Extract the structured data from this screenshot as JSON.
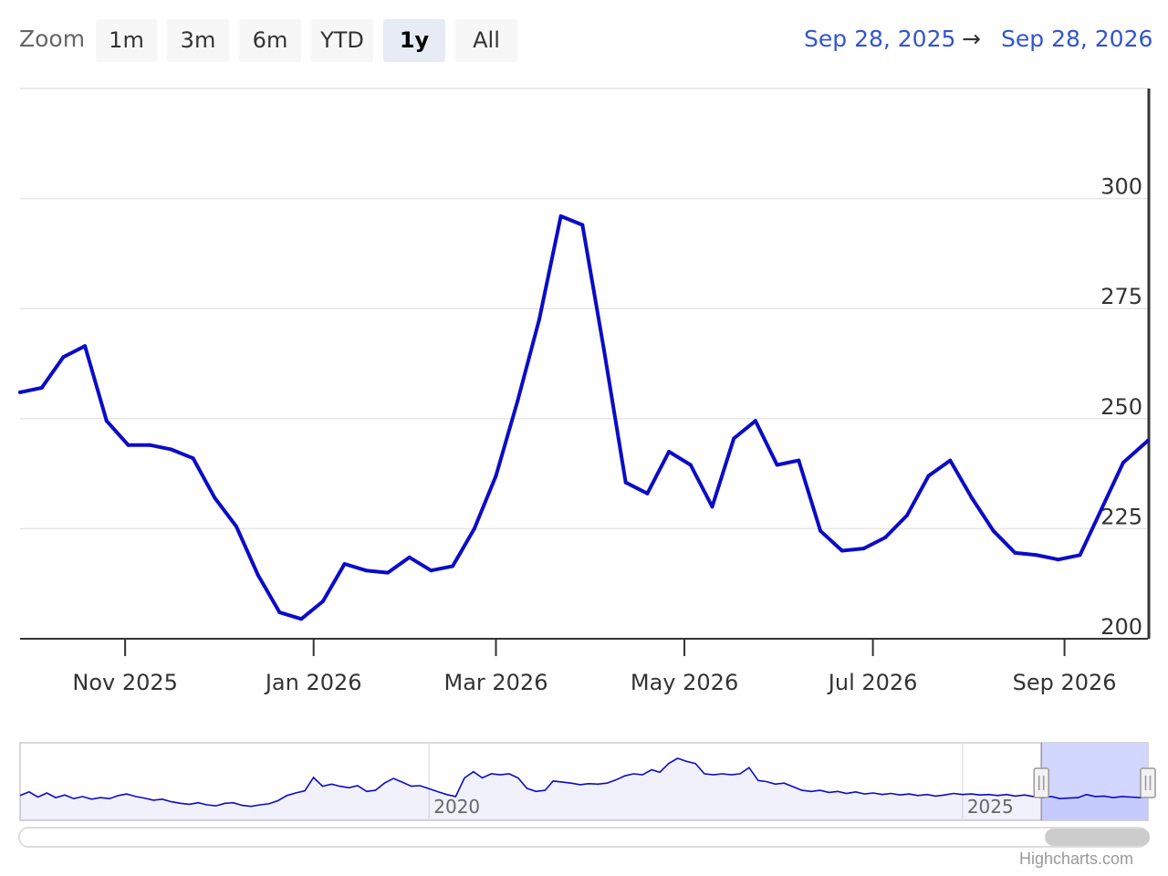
{
  "range_selector": {
    "zoom_label": "Zoom",
    "buttons": [
      "1m",
      "3m",
      "6m",
      "YTD",
      "1y",
      "All"
    ],
    "selected": "1y",
    "from": "Sep 28, 2025",
    "arrow": "→",
    "to": "Sep 28, 2026"
  },
  "credits": "Highcharts.com",
  "colors": {
    "series": "#0b0bc8",
    "navigator_mask": "#ccd3ff",
    "selected_button": "#e6ebf5",
    "range_text": "#3355cc"
  },
  "chart_data": {
    "type": "line",
    "x_range": [
      "2025-09-28",
      "2026-09-28"
    ],
    "ylim": [
      200,
      325
    ],
    "y_ticks": [
      200,
      225,
      250,
      275,
      300
    ],
    "x_ticks": [
      {
        "date": "2025-11-01",
        "label": "Nov 2025"
      },
      {
        "date": "2026-01-01",
        "label": "Jan 2026"
      },
      {
        "date": "2026-03-01",
        "label": "Mar 2026"
      },
      {
        "date": "2026-05-01",
        "label": "May 2026"
      },
      {
        "date": "2026-07-01",
        "label": "Jul 2026"
      },
      {
        "date": "2026-09-01",
        "label": "Sep 2026"
      }
    ],
    "grid": true,
    "series": [
      {
        "points": [
          [
            "2025-09-28",
            256
          ],
          [
            "2025-10-05",
            257
          ],
          [
            "2025-10-12",
            264
          ],
          [
            "2025-10-19",
            266.5
          ],
          [
            "2025-10-26",
            249.5
          ],
          [
            "2025-11-02",
            244
          ],
          [
            "2025-11-09",
            244
          ],
          [
            "2025-11-16",
            243
          ],
          [
            "2025-11-23",
            241
          ],
          [
            "2025-11-30",
            232
          ],
          [
            "2025-12-07",
            225.5
          ],
          [
            "2025-12-14",
            214.5
          ],
          [
            "2025-12-21",
            206
          ],
          [
            "2025-12-28",
            204.5
          ],
          [
            "2026-01-04",
            208.5
          ],
          [
            "2026-01-11",
            217
          ],
          [
            "2026-01-18",
            215.5
          ],
          [
            "2026-01-25",
            215
          ],
          [
            "2026-02-01",
            218.5
          ],
          [
            "2026-02-08",
            215.5
          ],
          [
            "2026-02-15",
            216.5
          ],
          [
            "2026-02-22",
            225
          ],
          [
            "2026-03-01",
            237
          ],
          [
            "2026-03-08",
            254
          ],
          [
            "2026-03-15",
            272.5
          ],
          [
            "2026-03-22",
            296
          ],
          [
            "2026-03-29",
            294
          ],
          [
            "2026-04-05",
            265.5
          ],
          [
            "2026-04-12",
            235.5
          ],
          [
            "2026-04-19",
            233
          ],
          [
            "2026-04-26",
            242.5
          ],
          [
            "2026-05-03",
            239.5
          ],
          [
            "2026-05-10",
            230
          ],
          [
            "2026-05-17",
            245.5
          ],
          [
            "2026-05-24",
            249.5
          ],
          [
            "2026-05-31",
            239.5
          ],
          [
            "2026-06-07",
            240.5
          ],
          [
            "2026-06-14",
            224.5
          ],
          [
            "2026-06-21",
            220
          ],
          [
            "2026-06-28",
            220.5
          ],
          [
            "2026-07-05",
            223
          ],
          [
            "2026-07-12",
            228
          ],
          [
            "2026-07-19",
            237
          ],
          [
            "2026-07-26",
            240.5
          ],
          [
            "2026-08-02",
            232
          ],
          [
            "2026-08-09",
            224.5
          ],
          [
            "2026-08-16",
            219.5
          ],
          [
            "2026-08-23",
            219
          ],
          [
            "2026-08-30",
            218
          ],
          [
            "2026-09-06",
            219
          ],
          [
            "2026-09-13",
            229.5
          ],
          [
            "2026-09-20",
            240
          ],
          [
            "2026-09-28",
            245
          ]
        ]
      }
    ],
    "navigator": {
      "x_range": [
        "2016-03-01",
        "2026-09-28"
      ],
      "x_labels": [
        {
          "date": "2020-01-01",
          "label": "2020"
        },
        {
          "date": "2025-01-01",
          "label": "2025"
        }
      ],
      "selected_range": [
        "2025-09-28",
        "2026-09-28"
      ],
      "ylim": [
        180,
        330
      ],
      "points": [
        [
          "2016-03-01",
          228
        ],
        [
          "2016-04-01",
          235
        ],
        [
          "2016-05-01",
          225
        ],
        [
          "2016-06-01",
          233
        ],
        [
          "2016-07-01",
          224
        ],
        [
          "2016-08-01",
          229
        ],
        [
          "2016-09-01",
          222
        ],
        [
          "2016-10-01",
          226
        ],
        [
          "2016-11-01",
          221
        ],
        [
          "2016-12-01",
          224
        ],
        [
          "2017-01-01",
          222
        ],
        [
          "2017-02-01",
          228
        ],
        [
          "2017-03-01",
          231
        ],
        [
          "2017-04-01",
          226
        ],
        [
          "2017-05-01",
          223
        ],
        [
          "2017-06-01",
          219
        ],
        [
          "2017-07-01",
          221
        ],
        [
          "2017-08-01",
          216
        ],
        [
          "2017-09-01",
          213
        ],
        [
          "2017-10-01",
          211
        ],
        [
          "2017-11-01",
          214
        ],
        [
          "2017-12-01",
          210
        ],
        [
          "2018-01-01",
          208
        ],
        [
          "2018-02-01",
          213
        ],
        [
          "2018-03-01",
          214
        ],
        [
          "2018-04-01",
          209
        ],
        [
          "2018-05-01",
          207
        ],
        [
          "2018-06-01",
          210
        ],
        [
          "2018-07-01",
          212
        ],
        [
          "2018-08-01",
          218
        ],
        [
          "2018-09-01",
          228
        ],
        [
          "2018-10-01",
          233
        ],
        [
          "2018-11-01",
          237
        ],
        [
          "2018-12-01",
          263
        ],
        [
          "2019-01-01",
          246
        ],
        [
          "2019-02-01",
          250
        ],
        [
          "2019-03-01",
          246
        ],
        [
          "2019-04-01",
          243
        ],
        [
          "2019-05-01",
          247
        ],
        [
          "2019-06-01",
          236
        ],
        [
          "2019-07-01",
          238
        ],
        [
          "2019-08-01",
          252
        ],
        [
          "2019-09-01",
          261
        ],
        [
          "2019-10-01",
          254
        ],
        [
          "2019-11-01",
          246
        ],
        [
          "2019-12-01",
          247
        ],
        [
          "2020-01-01",
          241
        ],
        [
          "2020-02-01",
          235
        ],
        [
          "2020-03-01",
          230
        ],
        [
          "2020-04-01",
          226
        ],
        [
          "2020-05-01",
          262
        ],
        [
          "2020-06-01",
          274
        ],
        [
          "2020-07-01",
          262
        ],
        [
          "2020-08-01",
          270
        ],
        [
          "2020-09-01",
          268
        ],
        [
          "2020-10-01",
          270
        ],
        [
          "2020-11-01",
          262
        ],
        [
          "2020-12-01",
          242
        ],
        [
          "2021-01-01",
          236
        ],
        [
          "2021-02-01",
          238
        ],
        [
          "2021-03-01",
          256
        ],
        [
          "2021-04-01",
          254
        ],
        [
          "2021-05-01",
          252
        ],
        [
          "2021-06-01",
          249
        ],
        [
          "2021-07-01",
          251
        ],
        [
          "2021-08-01",
          250
        ],
        [
          "2021-09-01",
          252
        ],
        [
          "2021-10-01",
          258
        ],
        [
          "2021-11-01",
          266
        ],
        [
          "2021-12-01",
          270
        ],
        [
          "2022-01-01",
          268
        ],
        [
          "2022-02-01",
          278
        ],
        [
          "2022-03-01",
          273
        ],
        [
          "2022-04-01",
          290
        ],
        [
          "2022-05-01",
          300
        ],
        [
          "2022-06-01",
          294
        ],
        [
          "2022-07-01",
          290
        ],
        [
          "2022-08-01",
          270
        ],
        [
          "2022-09-01",
          268
        ],
        [
          "2022-10-01",
          270
        ],
        [
          "2022-11-01",
          268
        ],
        [
          "2022-12-01",
          270
        ],
        [
          "2023-01-01",
          282
        ],
        [
          "2023-02-01",
          257
        ],
        [
          "2023-03-01",
          255
        ],
        [
          "2023-04-01",
          250
        ],
        [
          "2023-05-01",
          252
        ],
        [
          "2023-06-01",
          245
        ],
        [
          "2023-07-01",
          238
        ],
        [
          "2023-08-01",
          236
        ],
        [
          "2023-09-01",
          238
        ],
        [
          "2023-10-01",
          234
        ],
        [
          "2023-11-01",
          236
        ],
        [
          "2023-12-01",
          232
        ],
        [
          "2024-01-01",
          235
        ],
        [
          "2024-02-01",
          231
        ],
        [
          "2024-03-01",
          233
        ],
        [
          "2024-04-01",
          230
        ],
        [
          "2024-05-01",
          232
        ],
        [
          "2024-06-01",
          229
        ],
        [
          "2024-07-01",
          231
        ],
        [
          "2024-08-01",
          228
        ],
        [
          "2024-09-01",
          230
        ],
        [
          "2024-10-01",
          227
        ],
        [
          "2024-11-01",
          229
        ],
        [
          "2024-12-01",
          232
        ],
        [
          "2025-01-01",
          230
        ],
        [
          "2025-02-01",
          231
        ],
        [
          "2025-03-01",
          229
        ],
        [
          "2025-04-01",
          230
        ],
        [
          "2025-05-01",
          228
        ],
        [
          "2025-06-01",
          230
        ],
        [
          "2025-07-01",
          227
        ],
        [
          "2025-08-01",
          229
        ],
        [
          "2025-09-01",
          226
        ],
        [
          "2025-10-01",
          224
        ],
        [
          "2025-11-01",
          226
        ],
        [
          "2025-12-01",
          222
        ],
        [
          "2026-01-01",
          223
        ],
        [
          "2026-02-01",
          224
        ],
        [
          "2026-03-01",
          230
        ],
        [
          "2026-04-01",
          226
        ],
        [
          "2026-05-01",
          227
        ],
        [
          "2026-06-01",
          224
        ],
        [
          "2026-07-01",
          226
        ],
        [
          "2026-08-01",
          225
        ],
        [
          "2026-09-01",
          224
        ],
        [
          "2026-09-28",
          228
        ]
      ]
    }
  }
}
